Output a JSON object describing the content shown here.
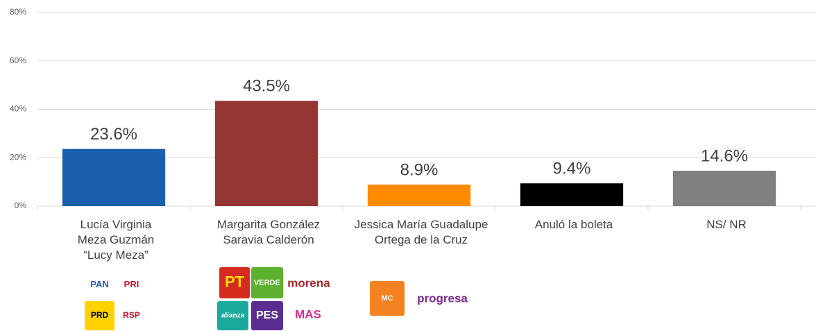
{
  "chart_data": {
    "type": "bar",
    "categories": [
      "Lucía Virginia\nMeza Guzmán\n“Lucy Meza”",
      "Margarita González\nSaravia Calderón",
      "Jessica María Guadalupe\nOrtega de la Cruz",
      "Anuló la boleta",
      "NS/ NR"
    ],
    "values": [
      23.6,
      43.5,
      8.9,
      9.4,
      14.6
    ],
    "value_labels": [
      "23.6%",
      "43.5%",
      "8.9%",
      "9.4%",
      "14.6%"
    ],
    "colors": [
      "#1b5eab",
      "#943634",
      "#ff8c00",
      "#000000",
      "#808080"
    ],
    "ylim": [
      0,
      80
    ],
    "yticks": [
      {
        "value": 0,
        "label": "0%"
      },
      {
        "value": 20,
        "label": "20%"
      },
      {
        "value": 40,
        "label": "40%"
      },
      {
        "value": 60,
        "label": "60%"
      },
      {
        "value": 80,
        "label": "80%"
      }
    ],
    "grid": true,
    "logos": [
      [
        "PAN",
        "PRI",
        "PRD",
        "RSP"
      ],
      [
        "PT",
        "VERDE",
        "morena",
        "alianza",
        "PES",
        "MAS"
      ],
      [
        "MC",
        "progresa"
      ]
    ]
  }
}
